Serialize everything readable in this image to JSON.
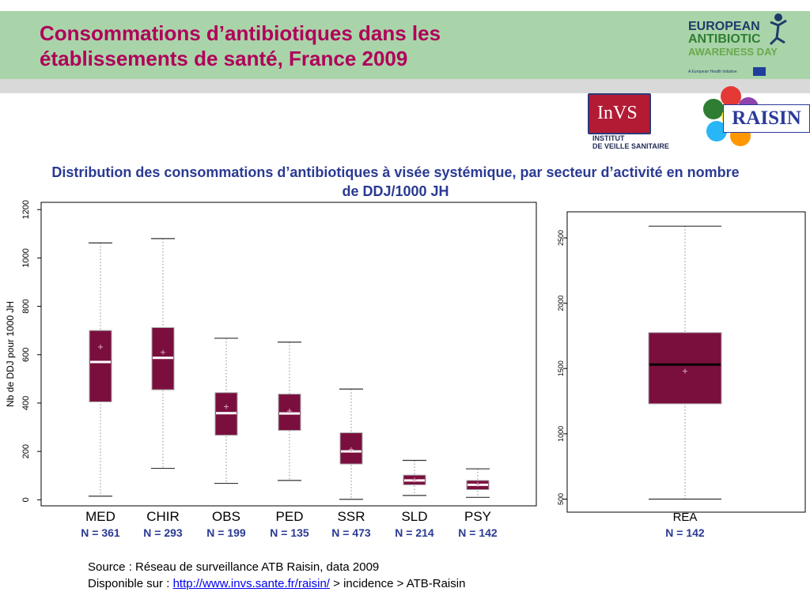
{
  "slide": {
    "title_line1": "Consommations d’antibiotiques dans les",
    "title_line2": "établissements de santé, France 2009"
  },
  "logos": {
    "eaad_line1": "EUROPEAN",
    "eaad_line2": "ANTIBIOTIC",
    "eaad_line3": "AWARENESS DAY",
    "eaad_sub": "A European Health Initiative",
    "invs_mark": "InVS",
    "invs_line1": "INSTITUT",
    "invs_line2": "DE VEILLE SANITAIRE",
    "raisin_word": "RAISIN"
  },
  "chart_data": {
    "type": "boxplot",
    "title": "Distribution des consommations d’antibiotiques à visée systémique, par secteur d’activité en nombre de DDJ/1000 JH",
    "ylabel": "Nb de DDJ pour 1000 JH",
    "colors": {
      "box": "#7a0f3e",
      "whisker": "#888888",
      "median_main": "#ffffff",
      "median_rea": "#000000",
      "n_label": "#2a3a93"
    },
    "panels": [
      {
        "name": "main",
        "ylim": [
          -25,
          1230
        ],
        "yticks": [
          0,
          200,
          400,
          600,
          800,
          1000,
          1200
        ],
        "categories": [
          {
            "label": "MED",
            "n": "N = 361",
            "min": 15,
            "q1": 405,
            "median": 570,
            "q3": 700,
            "max": 1062,
            "mean": 632
          },
          {
            "label": "CHIR",
            "n": "N = 293",
            "min": 130,
            "q1": 455,
            "median": 587,
            "q3": 712,
            "max": 1080,
            "mean": 610
          },
          {
            "label": "OBS",
            "n": "N = 199",
            "min": 68,
            "q1": 267,
            "median": 358,
            "q3": 443,
            "max": 668,
            "mean": 385
          },
          {
            "label": "PED",
            "n": "N = 135",
            "min": 80,
            "q1": 287,
            "median": 357,
            "q3": 437,
            "max": 652,
            "mean": 367
          },
          {
            "label": "SSR",
            "n": "N = 473",
            "min": 2,
            "q1": 148,
            "median": 200,
            "q3": 277,
            "max": 458,
            "mean": 208
          },
          {
            "label": "SLD",
            "n": "N = 214",
            "min": 18,
            "q1": 62,
            "median": 80,
            "q3": 102,
            "max": 163,
            "mean": 82
          },
          {
            "label": "PSY",
            "n": "N = 142",
            "min": 10,
            "q1": 42,
            "median": 62,
            "q3": 80,
            "max": 128,
            "mean": 64
          }
        ]
      },
      {
        "name": "rea",
        "ylim": [
          400,
          2700
        ],
        "yticks": [
          500,
          1000,
          1500,
          2000,
          2500
        ],
        "categories": [
          {
            "label": "REA",
            "n": "N = 142",
            "min": 500,
            "q1": 1230,
            "median": 1530,
            "q3": 1775,
            "max": 2590,
            "mean": 1480
          }
        ]
      }
    ]
  },
  "source": {
    "line1": "Source : Réseau de surveillance ATB Raisin, data 2009",
    "line2_prefix": "Disponible sur : ",
    "link_text": "http://www.invs.sante.fr/raisin/",
    "line2_suffix": " > incidence > ATB-Raisin"
  }
}
